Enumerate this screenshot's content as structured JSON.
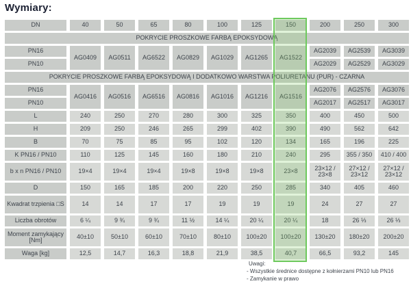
{
  "title": "Wymiary:",
  "highlight": {
    "highlighted_dn": "150",
    "border_color": "#6ec95d",
    "fill_color": "rgba(128,204,100,0.24)"
  },
  "colors": {
    "header_cell": "#c9ccc9",
    "value_cell": "#d7d9d6",
    "text": "#3d434b",
    "title_text": "#1c2133"
  },
  "table": {
    "dn_label": "DN",
    "dn_values": [
      "40",
      "50",
      "65",
      "80",
      "100",
      "125",
      "150",
      "200",
      "250",
      "300"
    ],
    "pn16_label": "PN16",
    "pn10_label": "PN10",
    "section1": {
      "band": "POKRYCIE PROSZKOWE FARBĄ EPOKSYDOWĄ",
      "merged_codes": [
        "AG0409",
        "AG0511",
        "AG6522",
        "AG0829",
        "AG1029",
        "AG1265",
        "AG1522"
      ],
      "split_codes": [
        {
          "pn16": "AG2039",
          "pn10": "AG2029"
        },
        {
          "pn16": "AG2539",
          "pn10": "AG2529"
        },
        {
          "pn16": "AG3039",
          "pn10": "AG3029"
        }
      ]
    },
    "section2": {
      "band": "POKRYCIE PROSZKOWE FARBĄ EPOKSYDOWĄ I DODATKOWO WARSTWA POLIURETANU (PUR) - CZARNA",
      "merged_codes": [
        "AG0416",
        "AG0516",
        "AG6516",
        "AG0816",
        "AG1016",
        "AG1216",
        "AG1516"
      ],
      "split_codes": [
        {
          "pn16": "AG2076",
          "pn10": "AG2017"
        },
        {
          "pn16": "AG2576",
          "pn10": "AG2517"
        },
        {
          "pn16": "AG3076",
          "pn10": "AG3017"
        }
      ]
    },
    "rows": [
      {
        "label": "L",
        "tall": false,
        "values": [
          "240",
          "250",
          "270",
          "280",
          "300",
          "325",
          "350",
          "400",
          "450",
          "500"
        ]
      },
      {
        "label": "H",
        "tall": false,
        "values": [
          "209",
          "250",
          "246",
          "265",
          "299",
          "402",
          "390",
          "490",
          "562",
          "642"
        ]
      },
      {
        "label": "B",
        "tall": false,
        "values": [
          "70",
          "75",
          "85",
          "95",
          "102",
          "120",
          "134",
          "165",
          "196",
          "225"
        ]
      },
      {
        "label": "K PN16 / PN10",
        "tall": false,
        "values": [
          "110",
          "125",
          "145",
          "160",
          "180",
          "210",
          "240",
          "295",
          "355 / 350",
          "410 / 400"
        ]
      },
      {
        "label": "b x n PN16 / PN10",
        "tall": true,
        "values": [
          "19×4",
          "19×4",
          "19×4",
          "19×8",
          "19×8",
          "19×8",
          "23×8",
          "23×12 / 23×8",
          "27×12 / 23×12",
          "27×12 / 23×12"
        ]
      },
      {
        "label": "D",
        "tall": false,
        "values": [
          "150",
          "165",
          "185",
          "200",
          "220",
          "250",
          "285",
          "340",
          "405",
          "460"
        ]
      },
      {
        "label": "Kwadrat trzpienia □S",
        "tall": true,
        "values": [
          "14",
          "14",
          "17",
          "17",
          "19",
          "19",
          "19",
          "24",
          "27",
          "27"
        ]
      },
      {
        "label": "Liczba obrotów",
        "tall": false,
        "values": [
          "6 ¼",
          "9 ¾",
          "9 ¾",
          "11 ½",
          "14 ¼",
          "20 ¼",
          "20 ¼",
          "18",
          "26 ⅓",
          "26 ⅓"
        ]
      },
      {
        "label": "Moment zamykający [Nm]",
        "tall": true,
        "values": [
          "40±10",
          "50±10",
          "60±10",
          "70±10",
          "80±10",
          "100±20",
          "100±20",
          "130±20",
          "180±20",
          "200±20"
        ]
      },
      {
        "label": "Waga [kg]",
        "tall": false,
        "values": [
          "12,5",
          "14,7",
          "16,3",
          "18,8",
          "21,9",
          "38,5",
          "40,7",
          "66,5",
          "93,2",
          "145"
        ]
      }
    ]
  },
  "notes": {
    "heading": "Uwagi:",
    "items": [
      "- Wszystkie średnice dostępne z kołnierzami PN10 lub PN16",
      "- Zamykanie w prawo"
    ]
  }
}
